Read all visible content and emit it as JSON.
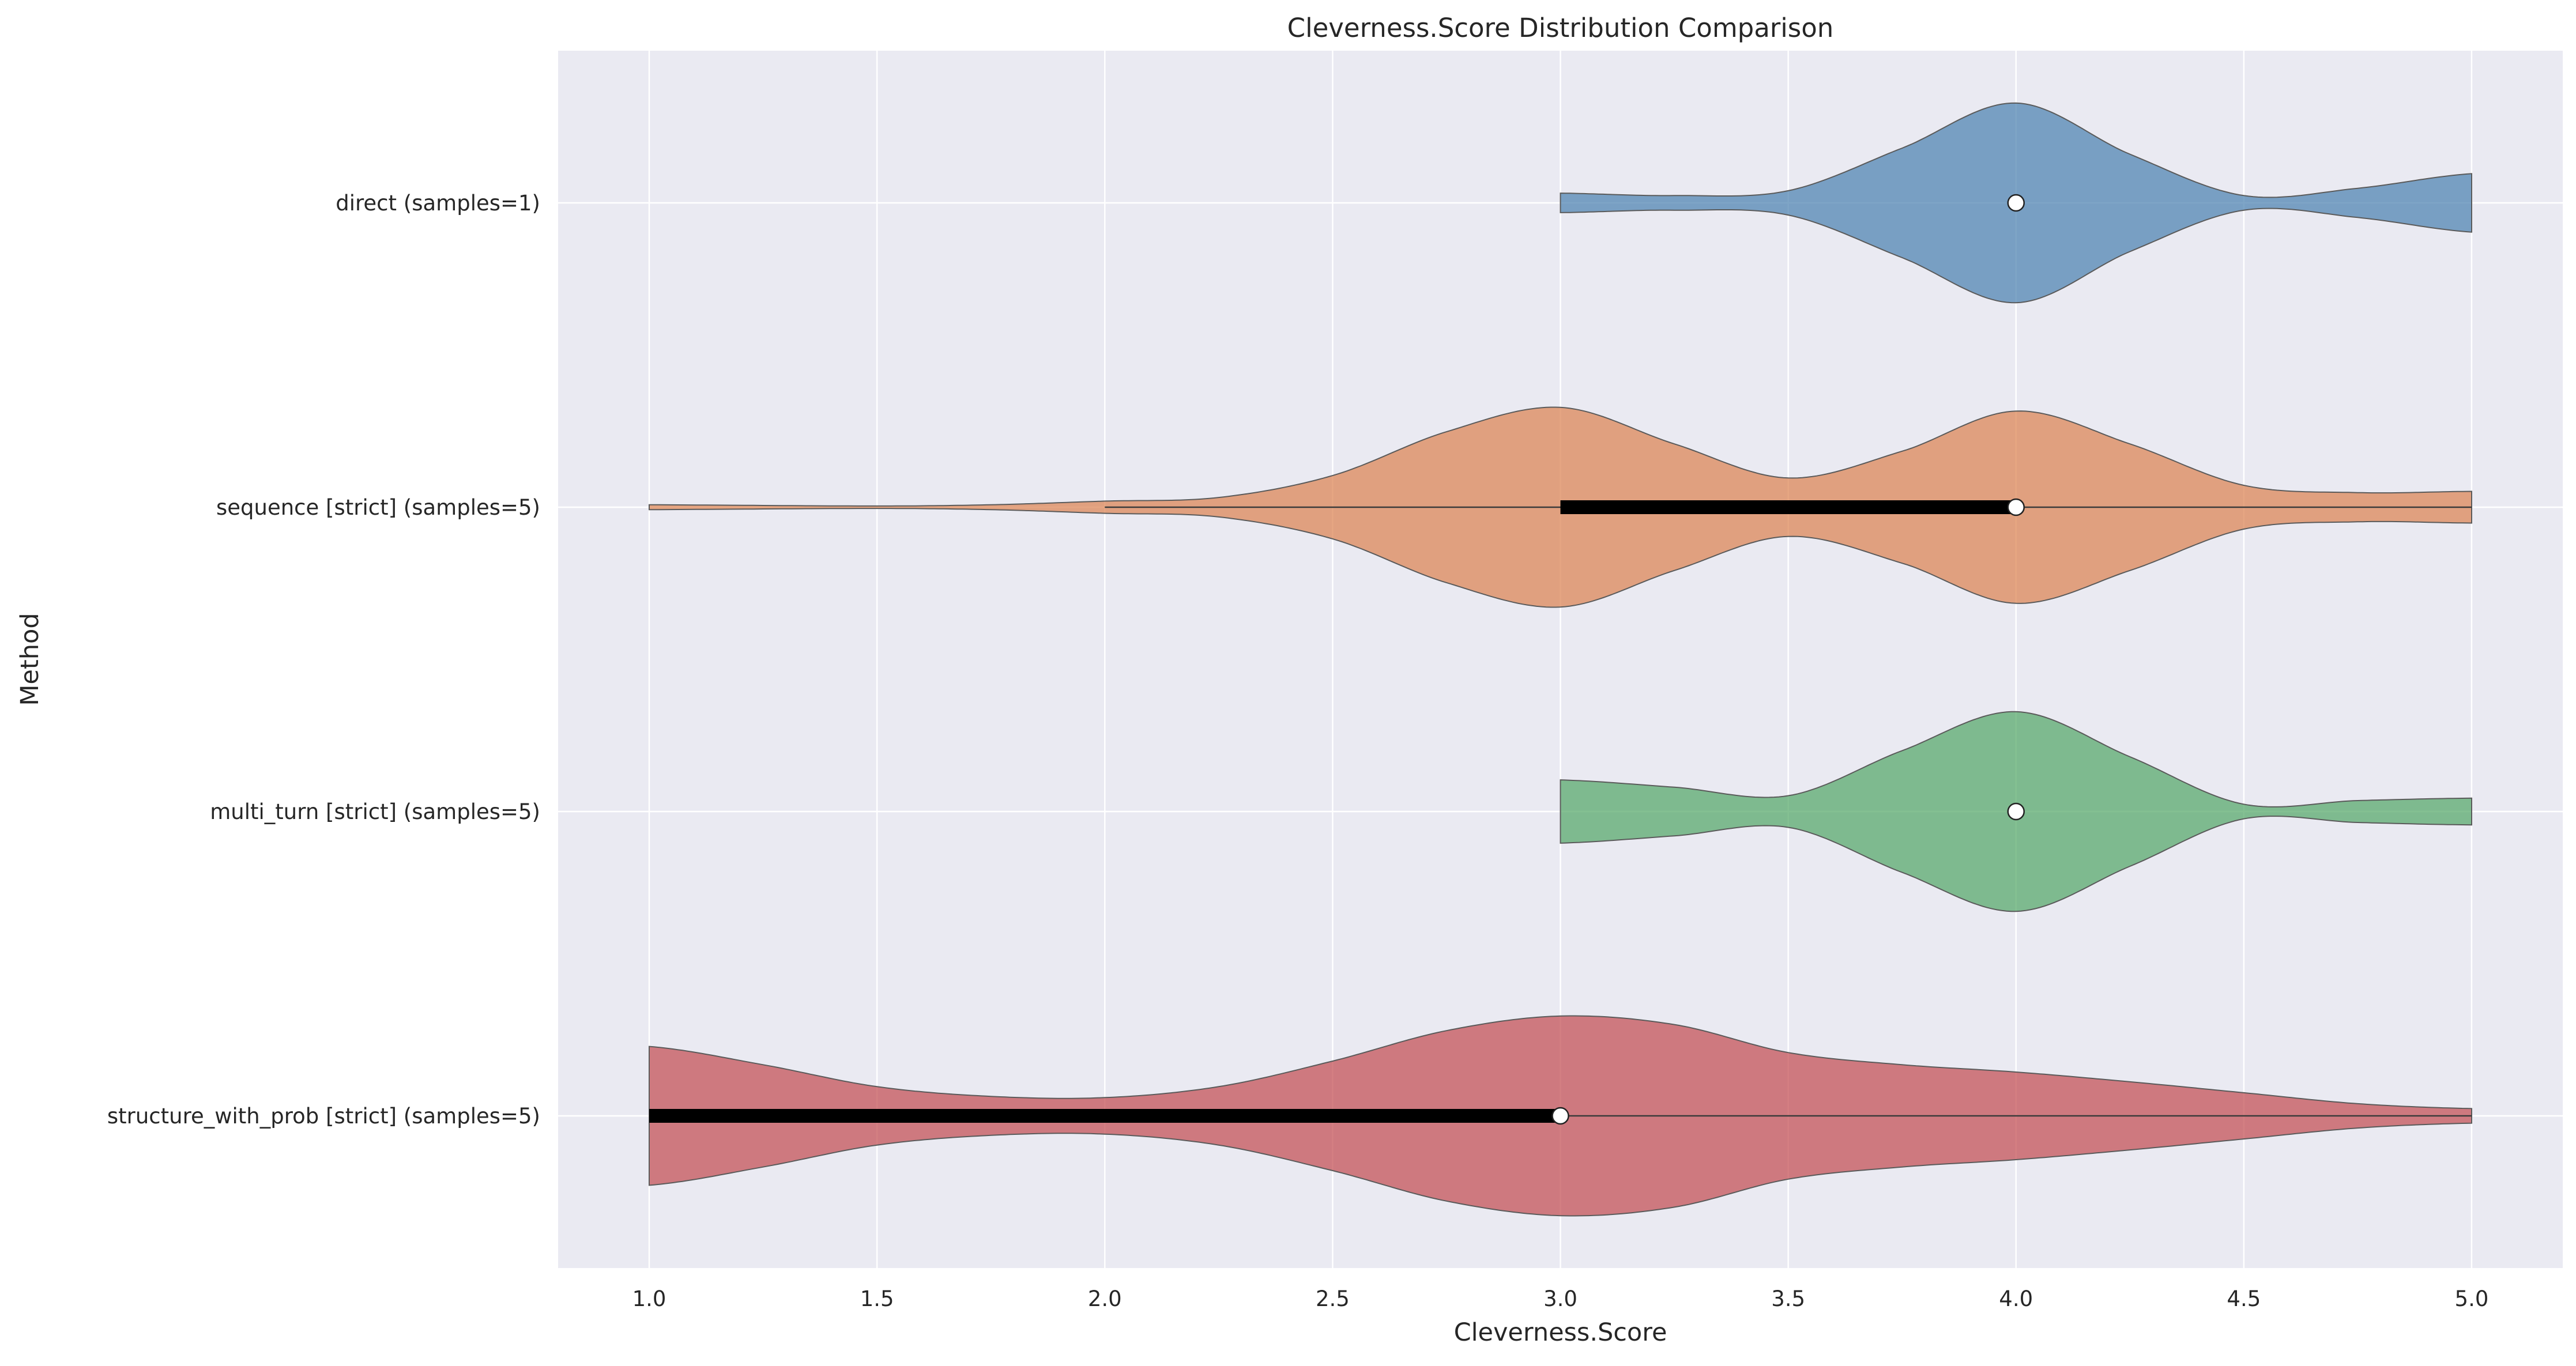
{
  "chart_data": {
    "type": "violin",
    "orientation": "horizontal",
    "title": "Cleverness.Score Distribution Comparison",
    "xlabel": "Cleverness.Score",
    "ylabel": "Method",
    "xlim": [
      0.8,
      5.2
    ],
    "xticks": [
      1.0,
      1.5,
      2.0,
      2.5,
      3.0,
      3.5,
      4.0,
      4.5,
      5.0
    ],
    "xtick_labels": [
      "1.0",
      "1.5",
      "2.0",
      "2.5",
      "3.0",
      "3.5",
      "4.0",
      "4.5",
      "5.0"
    ],
    "grid": true,
    "legend": "none",
    "series": [
      {
        "name": "direct (samples=1)",
        "color": "#4C82B0",
        "median": 4.0,
        "q1": 4.0,
        "q3": 4.0,
        "whisker_low": 4.0,
        "whisker_high": 4.0,
        "density": [
          [
            3.0,
            0.08
          ],
          [
            3.25,
            0.06
          ],
          [
            3.5,
            0.1
          ],
          [
            3.75,
            0.45
          ],
          [
            4.0,
            0.82
          ],
          [
            4.25,
            0.4
          ],
          [
            4.5,
            0.06
          ],
          [
            4.75,
            0.12
          ],
          [
            5.0,
            0.24
          ]
        ]
      },
      {
        "name": "sequence [strict] (samples=5)",
        "color": "#DD8452",
        "median": 4.0,
        "q1": 3.0,
        "q3": 4.0,
        "whisker_low": 2.0,
        "whisker_high": 5.0,
        "density": [
          [
            1.0,
            0.02
          ],
          [
            1.5,
            0.01
          ],
          [
            1.75,
            0.02
          ],
          [
            2.0,
            0.05
          ],
          [
            2.25,
            0.08
          ],
          [
            2.5,
            0.26
          ],
          [
            2.75,
            0.62
          ],
          [
            3.0,
            0.82
          ],
          [
            3.25,
            0.52
          ],
          [
            3.5,
            0.24
          ],
          [
            3.75,
            0.46
          ],
          [
            4.0,
            0.79
          ],
          [
            4.25,
            0.52
          ],
          [
            4.5,
            0.18
          ],
          [
            4.75,
            0.12
          ],
          [
            5.0,
            0.13
          ]
        ]
      },
      {
        "name": "multi_turn [strict] (samples=5)",
        "color": "#55A868",
        "median": 4.0,
        "q1": 4.0,
        "q3": 4.0,
        "whisker_low": 4.0,
        "whisker_high": 4.0,
        "density": [
          [
            3.0,
            0.26
          ],
          [
            3.25,
            0.2
          ],
          [
            3.5,
            0.13
          ],
          [
            3.75,
            0.5
          ],
          [
            4.0,
            0.82
          ],
          [
            4.25,
            0.45
          ],
          [
            4.5,
            0.06
          ],
          [
            4.75,
            0.09
          ],
          [
            5.0,
            0.11
          ]
        ]
      },
      {
        "name": "structure_with_prob [strict] (samples=5)",
        "color": "#C44E52",
        "median": 3.0,
        "q1": 1.0,
        "q3": 3.0,
        "whisker_low": 1.0,
        "whisker_high": 5.0,
        "density": [
          [
            1.0,
            0.57
          ],
          [
            1.25,
            0.42
          ],
          [
            1.5,
            0.24
          ],
          [
            1.75,
            0.16
          ],
          [
            2.0,
            0.15
          ],
          [
            2.25,
            0.24
          ],
          [
            2.5,
            0.45
          ],
          [
            2.75,
            0.7
          ],
          [
            3.0,
            0.82
          ],
          [
            3.25,
            0.75
          ],
          [
            3.5,
            0.52
          ],
          [
            3.75,
            0.42
          ],
          [
            4.0,
            0.36
          ],
          [
            4.25,
            0.28
          ],
          [
            4.5,
            0.19
          ],
          [
            4.75,
            0.1
          ],
          [
            5.0,
            0.06
          ]
        ]
      }
    ]
  }
}
